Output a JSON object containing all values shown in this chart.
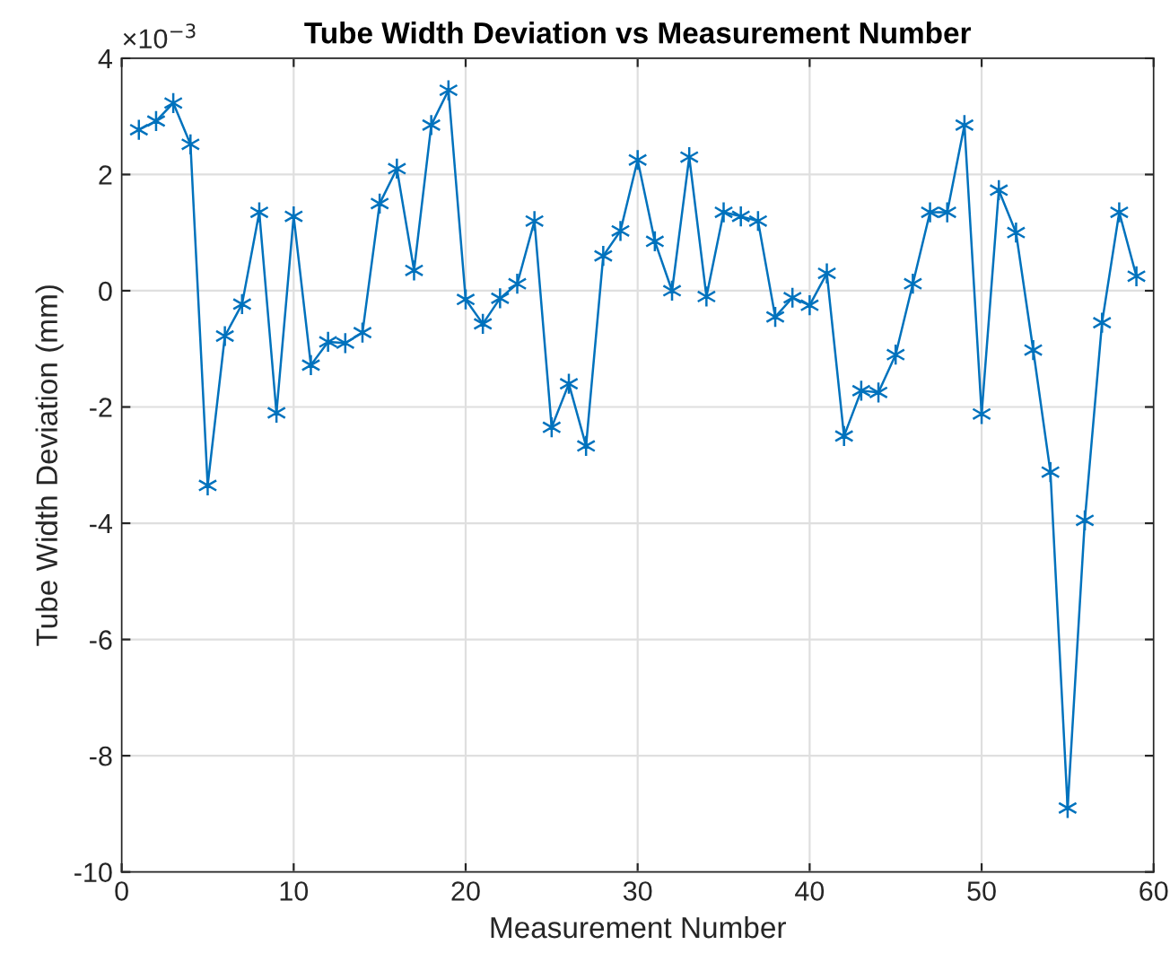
{
  "chart_data": {
    "type": "line",
    "title": "Tube Width Deviation vs Measurement Number",
    "xlabel": "Measurement Number",
    "ylabel": "Tube Width Deviation (mm)",
    "x": [
      1,
      2,
      3,
      4,
      5,
      6,
      7,
      8,
      9,
      10,
      11,
      12,
      13,
      14,
      15,
      16,
      17,
      18,
      19,
      20,
      21,
      22,
      23,
      24,
      25,
      26,
      27,
      28,
      29,
      30,
      31,
      32,
      33,
      34,
      35,
      36,
      37,
      38,
      39,
      40,
      41,
      42,
      43,
      44,
      45,
      46,
      47,
      48,
      49,
      50,
      51,
      52,
      53,
      54,
      55,
      56,
      57,
      58,
      59
    ],
    "series": [
      {
        "color": "#0072bd",
        "values": [
          2.77,
          2.92,
          3.23,
          2.52,
          -3.35,
          -0.78,
          -0.23,
          1.35,
          -2.1,
          1.28,
          -1.28,
          -0.88,
          -0.9,
          -0.72,
          1.5,
          2.1,
          0.35,
          2.85,
          3.45,
          -0.15,
          -0.57,
          -0.13,
          0.12,
          1.2,
          -2.35,
          -1.6,
          -2.67,
          0.6,
          1.03,
          2.25,
          0.85,
          0.0,
          2.3,
          -0.1,
          1.35,
          1.28,
          1.2,
          -0.45,
          -0.12,
          -0.25,
          0.3,
          -2.5,
          -1.72,
          -1.75,
          -1.1,
          0.12,
          1.35,
          1.35,
          2.85,
          -2.12,
          1.73,
          1.0,
          -1.02,
          -3.12,
          -8.9,
          -3.95,
          -0.55,
          1.35,
          0.25
        ]
      }
    ],
    "xlim": [
      0,
      60
    ],
    "xticks": [
      0,
      10,
      20,
      30,
      40,
      50,
      60
    ],
    "ylim": [
      -10,
      4
    ],
    "yticks": [
      -10,
      -8,
      -6,
      -4,
      -2,
      0,
      2,
      4
    ],
    "annotations": [
      "×10$^{−3}$"
    ],
    "grid": true,
    "marker": "cross",
    "line_style": "solid"
  }
}
